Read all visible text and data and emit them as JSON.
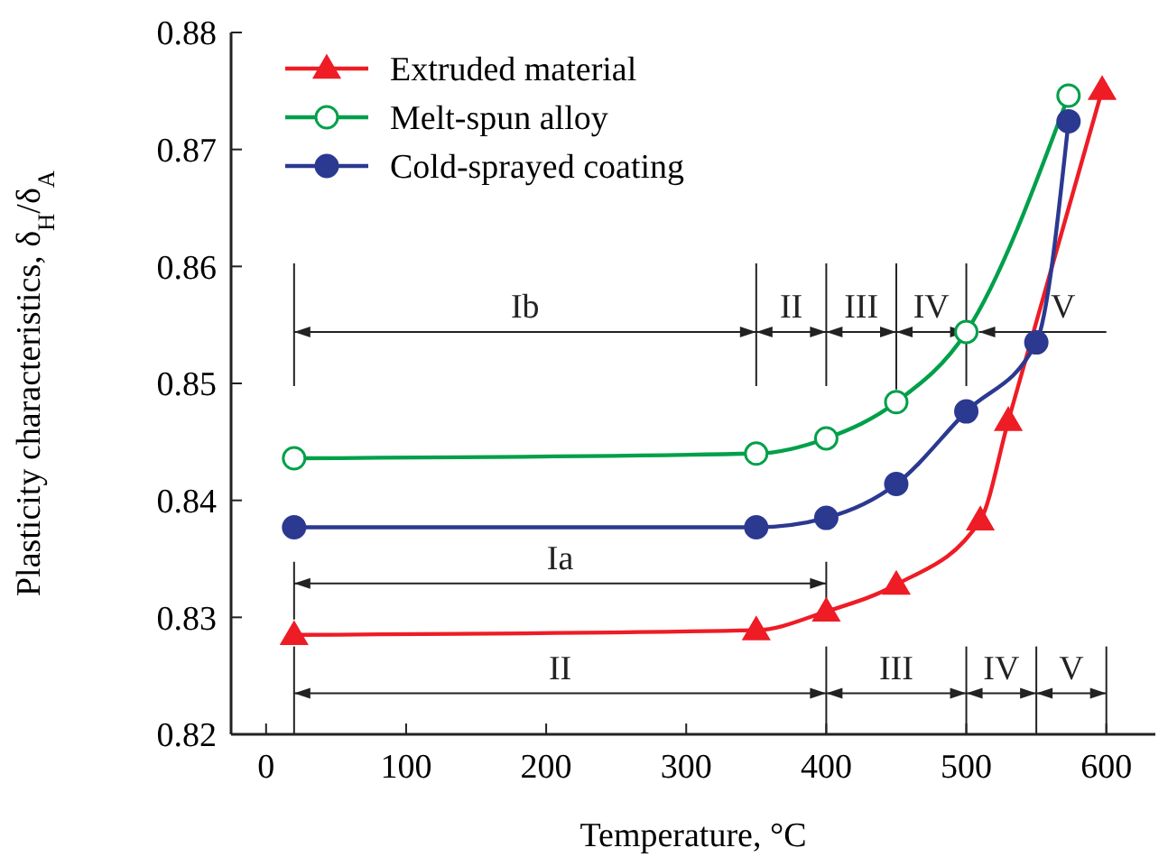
{
  "chart_data": {
    "type": "line",
    "xlabel": "Temperature, °C",
    "ylabel": "Plasticity characteristics, δ$_{H}$/δ$_{A}$",
    "xlim": [
      -25,
      635
    ],
    "xticks": [
      0,
      100,
      200,
      300,
      400,
      500,
      600
    ],
    "ylim": [
      0.82,
      0.88
    ],
    "yticks": [
      0.82,
      0.83,
      0.84,
      0.85,
      0.86,
      0.87,
      0.88
    ],
    "legend": "top left",
    "grid": false,
    "line_style": "solid",
    "series": [
      {
        "name": "Extruded material",
        "color": "#ee1c25",
        "marker": "triangle",
        "x": [
          20,
          350,
          400,
          450,
          510,
          530,
          597
        ],
        "values": [
          0.8285,
          0.8289,
          0.8305,
          0.8328,
          0.8383,
          0.8468,
          0.8751
        ]
      },
      {
        "name": "Melt-spun alloy",
        "color": "#00a04a",
        "marker": "circle",
        "x": [
          20,
          350,
          400,
          450,
          500,
          573
        ],
        "values": [
          0.8436,
          0.844,
          0.8453,
          0.8484,
          0.8544,
          0.8746
        ]
      },
      {
        "name": "Cold-sprayed coating",
        "color": "#2b3990",
        "marker": "circle",
        "x": [
          20,
          350,
          400,
          450,
          500,
          550,
          573
        ],
        "values": [
          0.8377,
          0.8377,
          0.8385,
          0.8414,
          0.8476,
          0.8535,
          0.8724
        ]
      }
    ],
    "annotations": [
      "Ib",
      "II",
      {
        "text": "III",
        "x": 450,
        "y": 0.8484
      },
      "IV",
      {
        "text": "V",
        "x": 500,
        "y": 0.8544
      },
      "Ia",
      "II",
      "III",
      "IV",
      "V"
    ]
  }
}
